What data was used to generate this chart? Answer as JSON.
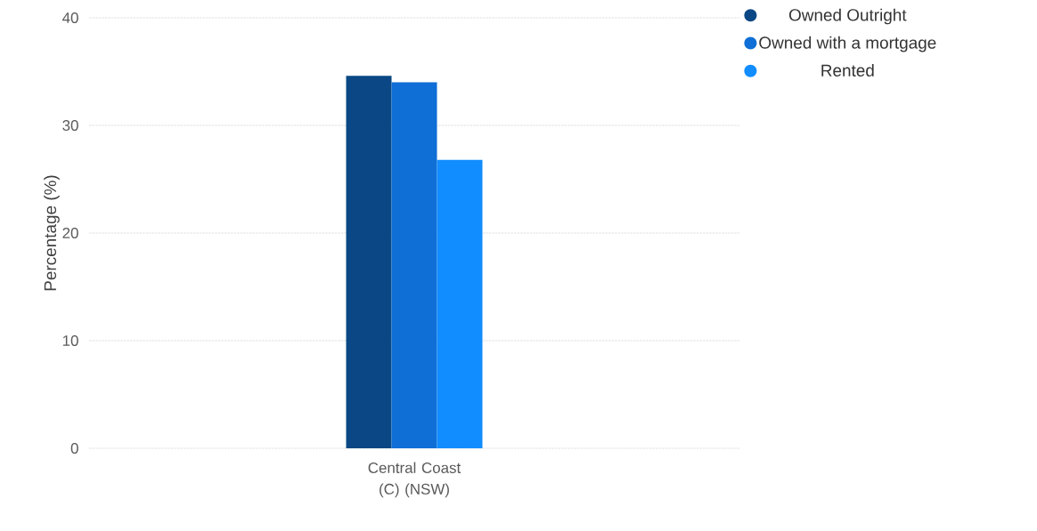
{
  "chart_data": {
    "type": "bar",
    "categories": [
      "Central Coast (C) (NSW)"
    ],
    "ylabel": "Percentage (%)",
    "series": [
      {
        "name": "Owned Outright",
        "color": "#0a4784",
        "values": [
          34.6
        ]
      },
      {
        "name": "Owned with a mortgage",
        "color": "#0f6fd6",
        "values": [
          34.0
        ]
      },
      {
        "name": "Rented",
        "color": "#118dff",
        "values": [
          26.8
        ]
      }
    ],
    "ylim": [
      0,
      40
    ],
    "yticks": [
      0,
      10,
      20,
      30,
      40
    ],
    "grid": "y",
    "legend": "top right"
  }
}
